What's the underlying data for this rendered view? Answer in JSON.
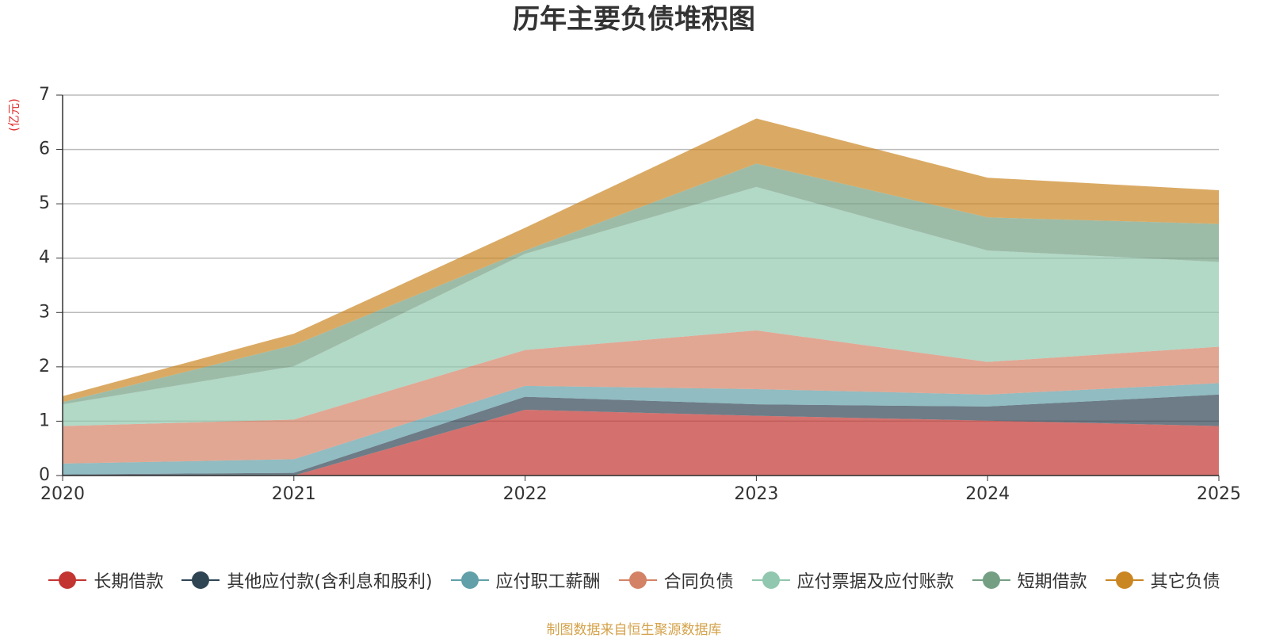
{
  "chart_data": {
    "type": "stacked_area",
    "title": "历年主要负债堆积图",
    "y_label": "(亿元)",
    "categories": [
      "2020",
      "2021",
      "2022",
      "2023",
      "2024",
      "2025"
    ],
    "series": [
      {
        "name": "长期借款",
        "color": "#c23531",
        "values": [
          0,
          0,
          1.21,
          1.1,
          1.01,
          0.91
        ]
      },
      {
        "name": "其他应付款(含利息和股利)",
        "color": "#2f4554",
        "values": [
          0.02,
          0.05,
          0.24,
          0.21,
          0.26,
          0.58
        ]
      },
      {
        "name": "应付职工薪酬",
        "color": "#61a0a8",
        "values": [
          0.2,
          0.25,
          0.2,
          0.28,
          0.22,
          0.21
        ]
      },
      {
        "name": "合同负债",
        "color": "#d48265",
        "values": [
          0.69,
          0.73,
          0.66,
          1.08,
          0.6,
          0.67
        ]
      },
      {
        "name": "应付票据及应付账款",
        "color": "#91c7ae",
        "values": [
          0.4,
          0.98,
          1.77,
          2.64,
          2.05,
          1.56
        ]
      },
      {
        "name": "短期借款",
        "color": "#749f83",
        "values": [
          0.04,
          0.39,
          0.06,
          0.43,
          0.61,
          0.7
        ]
      },
      {
        "name": "其它负债",
        "color": "#ca8622",
        "values": [
          0.11,
          0.21,
          0.42,
          0.83,
          0.73,
          0.62
        ]
      }
    ],
    "ylim": [
      0,
      7
    ],
    "yticks": [
      0,
      1,
      2,
      3,
      4,
      5,
      6,
      7
    ],
    "grid": true,
    "source": "制图数据来自恒生聚源数据库"
  }
}
